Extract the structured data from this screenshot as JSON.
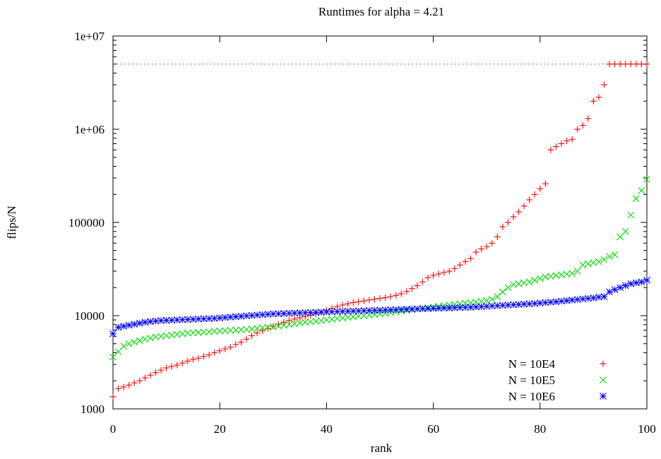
{
  "chart_data": {
    "type": "scatter",
    "title": "Runtimes for alpha = 4.21",
    "xlabel": "rank",
    "ylabel": "flips/N",
    "xlim": [
      0,
      100
    ],
    "ylim": [
      1000,
      10000000
    ],
    "yscale": "log",
    "xticks": [
      0,
      20,
      40,
      60,
      80,
      100
    ],
    "xtick_labels": [
      "0",
      "20",
      "40",
      "60",
      "80",
      "100"
    ],
    "yticks": [
      1000,
      10000,
      100000,
      1000000,
      10000000
    ],
    "ytick_labels": [
      "1000",
      "10000",
      "100000",
      "1e+06",
      "1e+07"
    ],
    "grid": false,
    "legend_position": "bottom-right",
    "cutoff": {
      "y": 5000000,
      "color": "#cc00aa",
      "style": "dotted"
    },
    "series": [
      {
        "name": "N = 10E4",
        "color": "#ff0000",
        "marker": "plus",
        "points": [
          [
            0,
            1350
          ],
          [
            1,
            1650
          ],
          [
            2,
            1720
          ],
          [
            3,
            1800
          ],
          [
            4,
            1900
          ],
          [
            5,
            2000
          ],
          [
            6,
            2150
          ],
          [
            7,
            2300
          ],
          [
            8,
            2450
          ],
          [
            9,
            2600
          ],
          [
            10,
            2750
          ],
          [
            11,
            2850
          ],
          [
            12,
            2950
          ],
          [
            13,
            3100
          ],
          [
            14,
            3250
          ],
          [
            15,
            3400
          ],
          [
            16,
            3500
          ],
          [
            17,
            3650
          ],
          [
            18,
            3800
          ],
          [
            19,
            4000
          ],
          [
            20,
            4200
          ],
          [
            21,
            4400
          ],
          [
            22,
            4600
          ],
          [
            23,
            4900
          ],
          [
            24,
            5200
          ],
          [
            25,
            5600
          ],
          [
            26,
            6100
          ],
          [
            27,
            6500
          ],
          [
            28,
            6900
          ],
          [
            29,
            7300
          ],
          [
            30,
            7700
          ],
          [
            31,
            8100
          ],
          [
            32,
            8500
          ],
          [
            33,
            8900
          ],
          [
            34,
            9200
          ],
          [
            35,
            9500
          ],
          [
            36,
            9800
          ],
          [
            37,
            10100
          ],
          [
            38,
            10500
          ],
          [
            39,
            10900
          ],
          [
            40,
            11400
          ],
          [
            41,
            12000
          ],
          [
            42,
            12500
          ],
          [
            43,
            13000
          ],
          [
            44,
            13400
          ],
          [
            45,
            13800
          ],
          [
            46,
            14100
          ],
          [
            47,
            14400
          ],
          [
            48,
            14700
          ],
          [
            49,
            15000
          ],
          [
            50,
            15300
          ],
          [
            51,
            15600
          ],
          [
            52,
            16000
          ],
          [
            53,
            16500
          ],
          [
            54,
            17200
          ],
          [
            55,
            18200
          ],
          [
            56,
            19500
          ],
          [
            57,
            21000
          ],
          [
            58,
            23000
          ],
          [
            59,
            25500
          ],
          [
            60,
            27000
          ],
          [
            61,
            28000
          ],
          [
            62,
            29000
          ],
          [
            63,
            30000
          ],
          [
            64,
            32000
          ],
          [
            65,
            35000
          ],
          [
            66,
            38000
          ],
          [
            67,
            41000
          ],
          [
            68,
            48000
          ],
          [
            69,
            52000
          ],
          [
            70,
            55000
          ],
          [
            71,
            60000
          ],
          [
            72,
            70000
          ],
          [
            73,
            90000
          ],
          [
            74,
            100000
          ],
          [
            75,
            115000
          ],
          [
            76,
            130000
          ],
          [
            77,
            150000
          ],
          [
            78,
            175000
          ],
          [
            79,
            200000
          ],
          [
            80,
            230000
          ],
          [
            81,
            260000
          ],
          [
            82,
            600000
          ],
          [
            83,
            650000
          ],
          [
            84,
            700000
          ],
          [
            85,
            750000
          ],
          [
            86,
            780000
          ],
          [
            87,
            1000000
          ],
          [
            88,
            1100000
          ],
          [
            89,
            1300000
          ],
          [
            90,
            2000000
          ],
          [
            91,
            2200000
          ],
          [
            92,
            3000000
          ],
          [
            93,
            5000000
          ],
          [
            94,
            5000000
          ],
          [
            95,
            5000000
          ],
          [
            96,
            5000000
          ],
          [
            97,
            5000000
          ],
          [
            98,
            5000000
          ],
          [
            99,
            5000000
          ],
          [
            100,
            5000000
          ]
        ]
      },
      {
        "name": "N = 10E5",
        "color": "#00dd00",
        "marker": "cross",
        "points": [
          [
            0,
            3600
          ],
          [
            1,
            4100
          ],
          [
            2,
            4700
          ],
          [
            3,
            5000
          ],
          [
            4,
            5200
          ],
          [
            5,
            5400
          ],
          [
            6,
            5600
          ],
          [
            7,
            5750
          ],
          [
            8,
            5900
          ],
          [
            9,
            6000
          ],
          [
            10,
            6100
          ],
          [
            11,
            6200
          ],
          [
            12,
            6300
          ],
          [
            13,
            6400
          ],
          [
            14,
            6500
          ],
          [
            15,
            6550
          ],
          [
            16,
            6600
          ],
          [
            17,
            6650
          ],
          [
            18,
            6700
          ],
          [
            19,
            6800
          ],
          [
            20,
            6850
          ],
          [
            21,
            6900
          ],
          [
            22,
            6950
          ],
          [
            23,
            7000
          ],
          [
            24,
            7050
          ],
          [
            25,
            7100
          ],
          [
            26,
            7200
          ],
          [
            27,
            7300
          ],
          [
            28,
            7400
          ],
          [
            29,
            7500
          ],
          [
            30,
            7600
          ],
          [
            31,
            7750
          ],
          [
            32,
            7900
          ],
          [
            33,
            8050
          ],
          [
            34,
            8200
          ],
          [
            35,
            8350
          ],
          [
            36,
            8500
          ],
          [
            37,
            8600
          ],
          [
            38,
            8700
          ],
          [
            39,
            8850
          ],
          [
            40,
            9000
          ],
          [
            41,
            9150
          ],
          [
            42,
            9300
          ],
          [
            43,
            9450
          ],
          [
            44,
            9600
          ],
          [
            45,
            9750
          ],
          [
            46,
            9900
          ],
          [
            47,
            10000
          ],
          [
            48,
            10150
          ],
          [
            49,
            10300
          ],
          [
            50,
            10450
          ],
          [
            51,
            10600
          ],
          [
            52,
            10800
          ],
          [
            53,
            11000
          ],
          [
            54,
            11200
          ],
          [
            55,
            11400
          ],
          [
            56,
            11600
          ],
          [
            57,
            11800
          ],
          [
            58,
            12000
          ],
          [
            59,
            12200
          ],
          [
            60,
            12400
          ],
          [
            61,
            12600
          ],
          [
            62,
            12800
          ],
          [
            63,
            13000
          ],
          [
            64,
            13200
          ],
          [
            65,
            13400
          ],
          [
            66,
            13600
          ],
          [
            67,
            13800
          ],
          [
            68,
            14000
          ],
          [
            69,
            14200
          ],
          [
            70,
            14500
          ],
          [
            71,
            15000
          ],
          [
            72,
            16000
          ],
          [
            73,
            18000
          ],
          [
            74,
            20000
          ],
          [
            75,
            21500
          ],
          [
            76,
            22000
          ],
          [
            77,
            22500
          ],
          [
            78,
            23000
          ],
          [
            79,
            24000
          ],
          [
            80,
            25000
          ],
          [
            81,
            26000
          ],
          [
            82,
            26500
          ],
          [
            83,
            27000
          ],
          [
            84,
            27500
          ],
          [
            85,
            28000
          ],
          [
            86,
            28500
          ],
          [
            87,
            30000
          ],
          [
            88,
            35000
          ],
          [
            89,
            36000
          ],
          [
            90,
            37000
          ],
          [
            91,
            38000
          ],
          [
            92,
            40000
          ],
          [
            93,
            43000
          ],
          [
            94,
            45000
          ],
          [
            95,
            70000
          ],
          [
            96,
            80000
          ],
          [
            97,
            120000
          ],
          [
            98,
            180000
          ],
          [
            99,
            220000
          ],
          [
            100,
            290000
          ]
        ]
      },
      {
        "name": "N = 10E6",
        "color": "#0000ff",
        "marker": "star",
        "points": [
          [
            0,
            6400
          ],
          [
            1,
            7500
          ],
          [
            2,
            7700
          ],
          [
            3,
            7900
          ],
          [
            4,
            8100
          ],
          [
            5,
            8300
          ],
          [
            6,
            8500
          ],
          [
            7,
            8650
          ],
          [
            8,
            8750
          ],
          [
            9,
            8850
          ],
          [
            10,
            8900
          ],
          [
            11,
            8950
          ],
          [
            12,
            9000
          ],
          [
            13,
            9050
          ],
          [
            14,
            9100
          ],
          [
            15,
            9150
          ],
          [
            16,
            9200
          ],
          [
            17,
            9250
          ],
          [
            18,
            9300
          ],
          [
            19,
            9350
          ],
          [
            20,
            9450
          ],
          [
            21,
            9550
          ],
          [
            22,
            9650
          ],
          [
            23,
            9750
          ],
          [
            24,
            9850
          ],
          [
            25,
            9950
          ],
          [
            26,
            10050
          ],
          [
            27,
            10150
          ],
          [
            28,
            10250
          ],
          [
            29,
            10350
          ],
          [
            30,
            10450
          ],
          [
            31,
            10500
          ],
          [
            32,
            10550
          ],
          [
            33,
            10600
          ],
          [
            34,
            10650
          ],
          [
            35,
            10700
          ],
          [
            36,
            10750
          ],
          [
            37,
            10800
          ],
          [
            38,
            10850
          ],
          [
            39,
            10900
          ],
          [
            40,
            10950
          ],
          [
            41,
            11000
          ],
          [
            42,
            11050
          ],
          [
            43,
            11100
          ],
          [
            44,
            11150
          ],
          [
            45,
            11200
          ],
          [
            46,
            11250
          ],
          [
            47,
            11300
          ],
          [
            48,
            11350
          ],
          [
            49,
            11400
          ],
          [
            50,
            11450
          ],
          [
            51,
            11500
          ],
          [
            52,
            11550
          ],
          [
            53,
            11600
          ],
          [
            54,
            11650
          ],
          [
            55,
            11700
          ],
          [
            56,
            11750
          ],
          [
            57,
            11800
          ],
          [
            58,
            11850
          ],
          [
            59,
            11900
          ],
          [
            60,
            11950
          ],
          [
            61,
            12000
          ],
          [
            62,
            12050
          ],
          [
            63,
            12100
          ],
          [
            64,
            12150
          ],
          [
            65,
            12200
          ],
          [
            66,
            12250
          ],
          [
            67,
            12300
          ],
          [
            68,
            12400
          ],
          [
            69,
            12500
          ],
          [
            70,
            12600
          ],
          [
            71,
            12700
          ],
          [
            72,
            12800
          ],
          [
            73,
            12900
          ],
          [
            74,
            13000
          ],
          [
            75,
            13100
          ],
          [
            76,
            13200
          ],
          [
            77,
            13300
          ],
          [
            78,
            13400
          ],
          [
            79,
            13500
          ],
          [
            80,
            13650
          ],
          [
            81,
            13800
          ],
          [
            82,
            13950
          ],
          [
            83,
            14100
          ],
          [
            84,
            14300
          ],
          [
            85,
            14500
          ],
          [
            86,
            14700
          ],
          [
            87,
            14900
          ],
          [
            88,
            15100
          ],
          [
            89,
            15300
          ],
          [
            90,
            15500
          ],
          [
            91,
            15800
          ],
          [
            92,
            16000
          ],
          [
            93,
            18000
          ],
          [
            94,
            19000
          ],
          [
            95,
            20000
          ],
          [
            96,
            21000
          ],
          [
            97,
            22000
          ],
          [
            98,
            22500
          ],
          [
            99,
            23000
          ],
          [
            100,
            24000
          ]
        ]
      }
    ]
  }
}
